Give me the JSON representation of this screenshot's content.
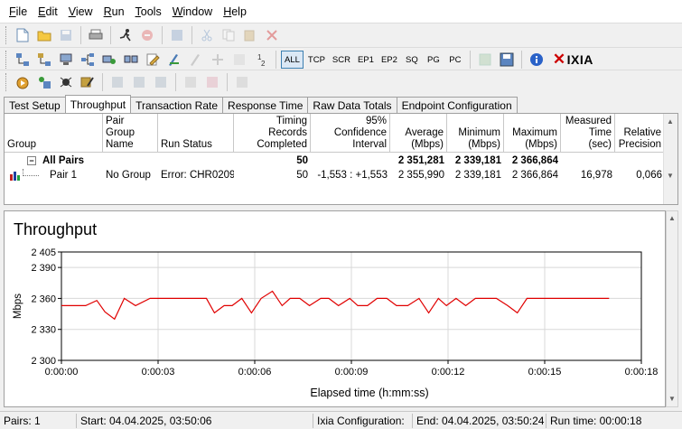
{
  "menu": [
    "File",
    "Edit",
    "View",
    "Run",
    "Tools",
    "Window",
    "Help"
  ],
  "menu_mnemonic": [
    "F",
    "E",
    "V",
    "R",
    "T",
    "W",
    "H"
  ],
  "toolbar1": {
    "icons": [
      "new-file-icon",
      "open-folder-icon",
      "save-icon",
      "print-icon",
      "run-icon",
      "stop-icon",
      "refresh-icon",
      "copy-icon",
      "copy-alt-icon",
      "paste-icon",
      "delete-icon"
    ]
  },
  "toolbar2": {
    "protocols": [
      "ALL",
      "TCP",
      "SCR",
      "EP1",
      "EP2",
      "SQ",
      "PG",
      "PC"
    ],
    "active_protocol": "ALL",
    "brand": "IXIA"
  },
  "tabs": [
    "Test Setup",
    "Throughput",
    "Transaction Rate",
    "Response Time",
    "Raw Data Totals",
    "Endpoint Configuration"
  ],
  "active_tab": "Throughput",
  "grid": {
    "headers": [
      "Group",
      "Pair Group Name",
      "Run Status",
      "Timing Records Completed",
      "95% Confidence Interval",
      "Average (Mbps)",
      "Minimum (Mbps)",
      "Maximum (Mbps)",
      "Measured Time (sec)",
      "Relative Precision"
    ],
    "header_lines": [
      [
        "Group"
      ],
      [
        "Pair Group",
        "Name"
      ],
      [
        "Run Status"
      ],
      [
        "Timing Records",
        "Completed"
      ],
      [
        "95% Confidence",
        "Interval"
      ],
      [
        "Average",
        "(Mbps)"
      ],
      [
        "Minimum",
        "(Mbps)"
      ],
      [
        "Maximum",
        "(Mbps)"
      ],
      [
        "Measured",
        "Time (sec)"
      ],
      [
        "Relative",
        "Precision"
      ]
    ],
    "summary": {
      "expander": "−",
      "label": "All Pairs",
      "records": "50",
      "average": "2 351,281",
      "minimum": "2 339,181",
      "maximum": "2 366,864"
    },
    "pair": {
      "label": "Pair 1",
      "group_name": "No Group",
      "run_status": "Error:  CHR0209",
      "records": "50",
      "confidence": "-1,553 : +1,553",
      "average": "2 355,990",
      "minimum": "2 339,181",
      "maximum": "2 366,864",
      "measured_time": "16,978",
      "precision": "0,066"
    }
  },
  "chart_data": {
    "type": "line",
    "title": "Throughput",
    "xlabel": "Elapsed time (h:mm:ss)",
    "ylabel": "Mbps",
    "ylim": [
      2300,
      2405
    ],
    "yticks": [
      "2 405",
      "2 390",
      "2 360",
      "2 330",
      "2 300"
    ],
    "ytick_values": [
      2405,
      2390,
      2360,
      2330,
      2300
    ],
    "xlim": [
      0,
      18
    ],
    "xticks": [
      "0:00:00",
      "0:00:03",
      "0:00:06",
      "0:00:09",
      "0:00:12",
      "0:00:15",
      "0:00:18"
    ],
    "xtick_values": [
      0,
      3,
      6,
      9,
      12,
      15,
      18
    ],
    "grid": true,
    "color": "#e00000",
    "x": [
      0,
      0.75,
      1.1,
      1.35,
      1.65,
      1.95,
      2.3,
      2.75,
      3.1,
      3.5,
      4.0,
      4.5,
      4.75,
      5.05,
      5.3,
      5.6,
      5.9,
      6.2,
      6.55,
      6.85,
      7.1,
      7.4,
      7.7,
      8.05,
      8.3,
      8.6,
      8.95,
      9.2,
      9.5,
      9.8,
      10.1,
      10.4,
      10.75,
      11.1,
      11.4,
      11.7,
      11.95,
      12.25,
      12.55,
      12.85,
      13.15,
      13.5,
      13.85,
      14.15,
      14.45,
      14.75,
      15.2,
      15.8,
      16.4,
      17.0
    ],
    "y": [
      2353,
      2353,
      2358,
      2347,
      2340,
      2360,
      2353,
      2360,
      2360,
      2360,
      2360,
      2360,
      2346,
      2353,
      2353,
      2360,
      2346,
      2360,
      2367,
      2353,
      2360,
      2360,
      2353,
      2360,
      2360,
      2353,
      2360,
      2353,
      2353,
      2360,
      2360,
      2353,
      2353,
      2360,
      2346,
      2360,
      2353,
      2360,
      2353,
      2360,
      2360,
      2360,
      2353,
      2346,
      2360,
      2360,
      2360,
      2360,
      2360,
      2360
    ]
  },
  "status": {
    "pairs": "Pairs: 1",
    "start": "Start: 04.04.2025, 03:50:06",
    "ixia_config": "Ixia Configuration:",
    "end": "End: 04.04.2025, 03:50:24",
    "runtime": "Run time: 00:00:18"
  }
}
